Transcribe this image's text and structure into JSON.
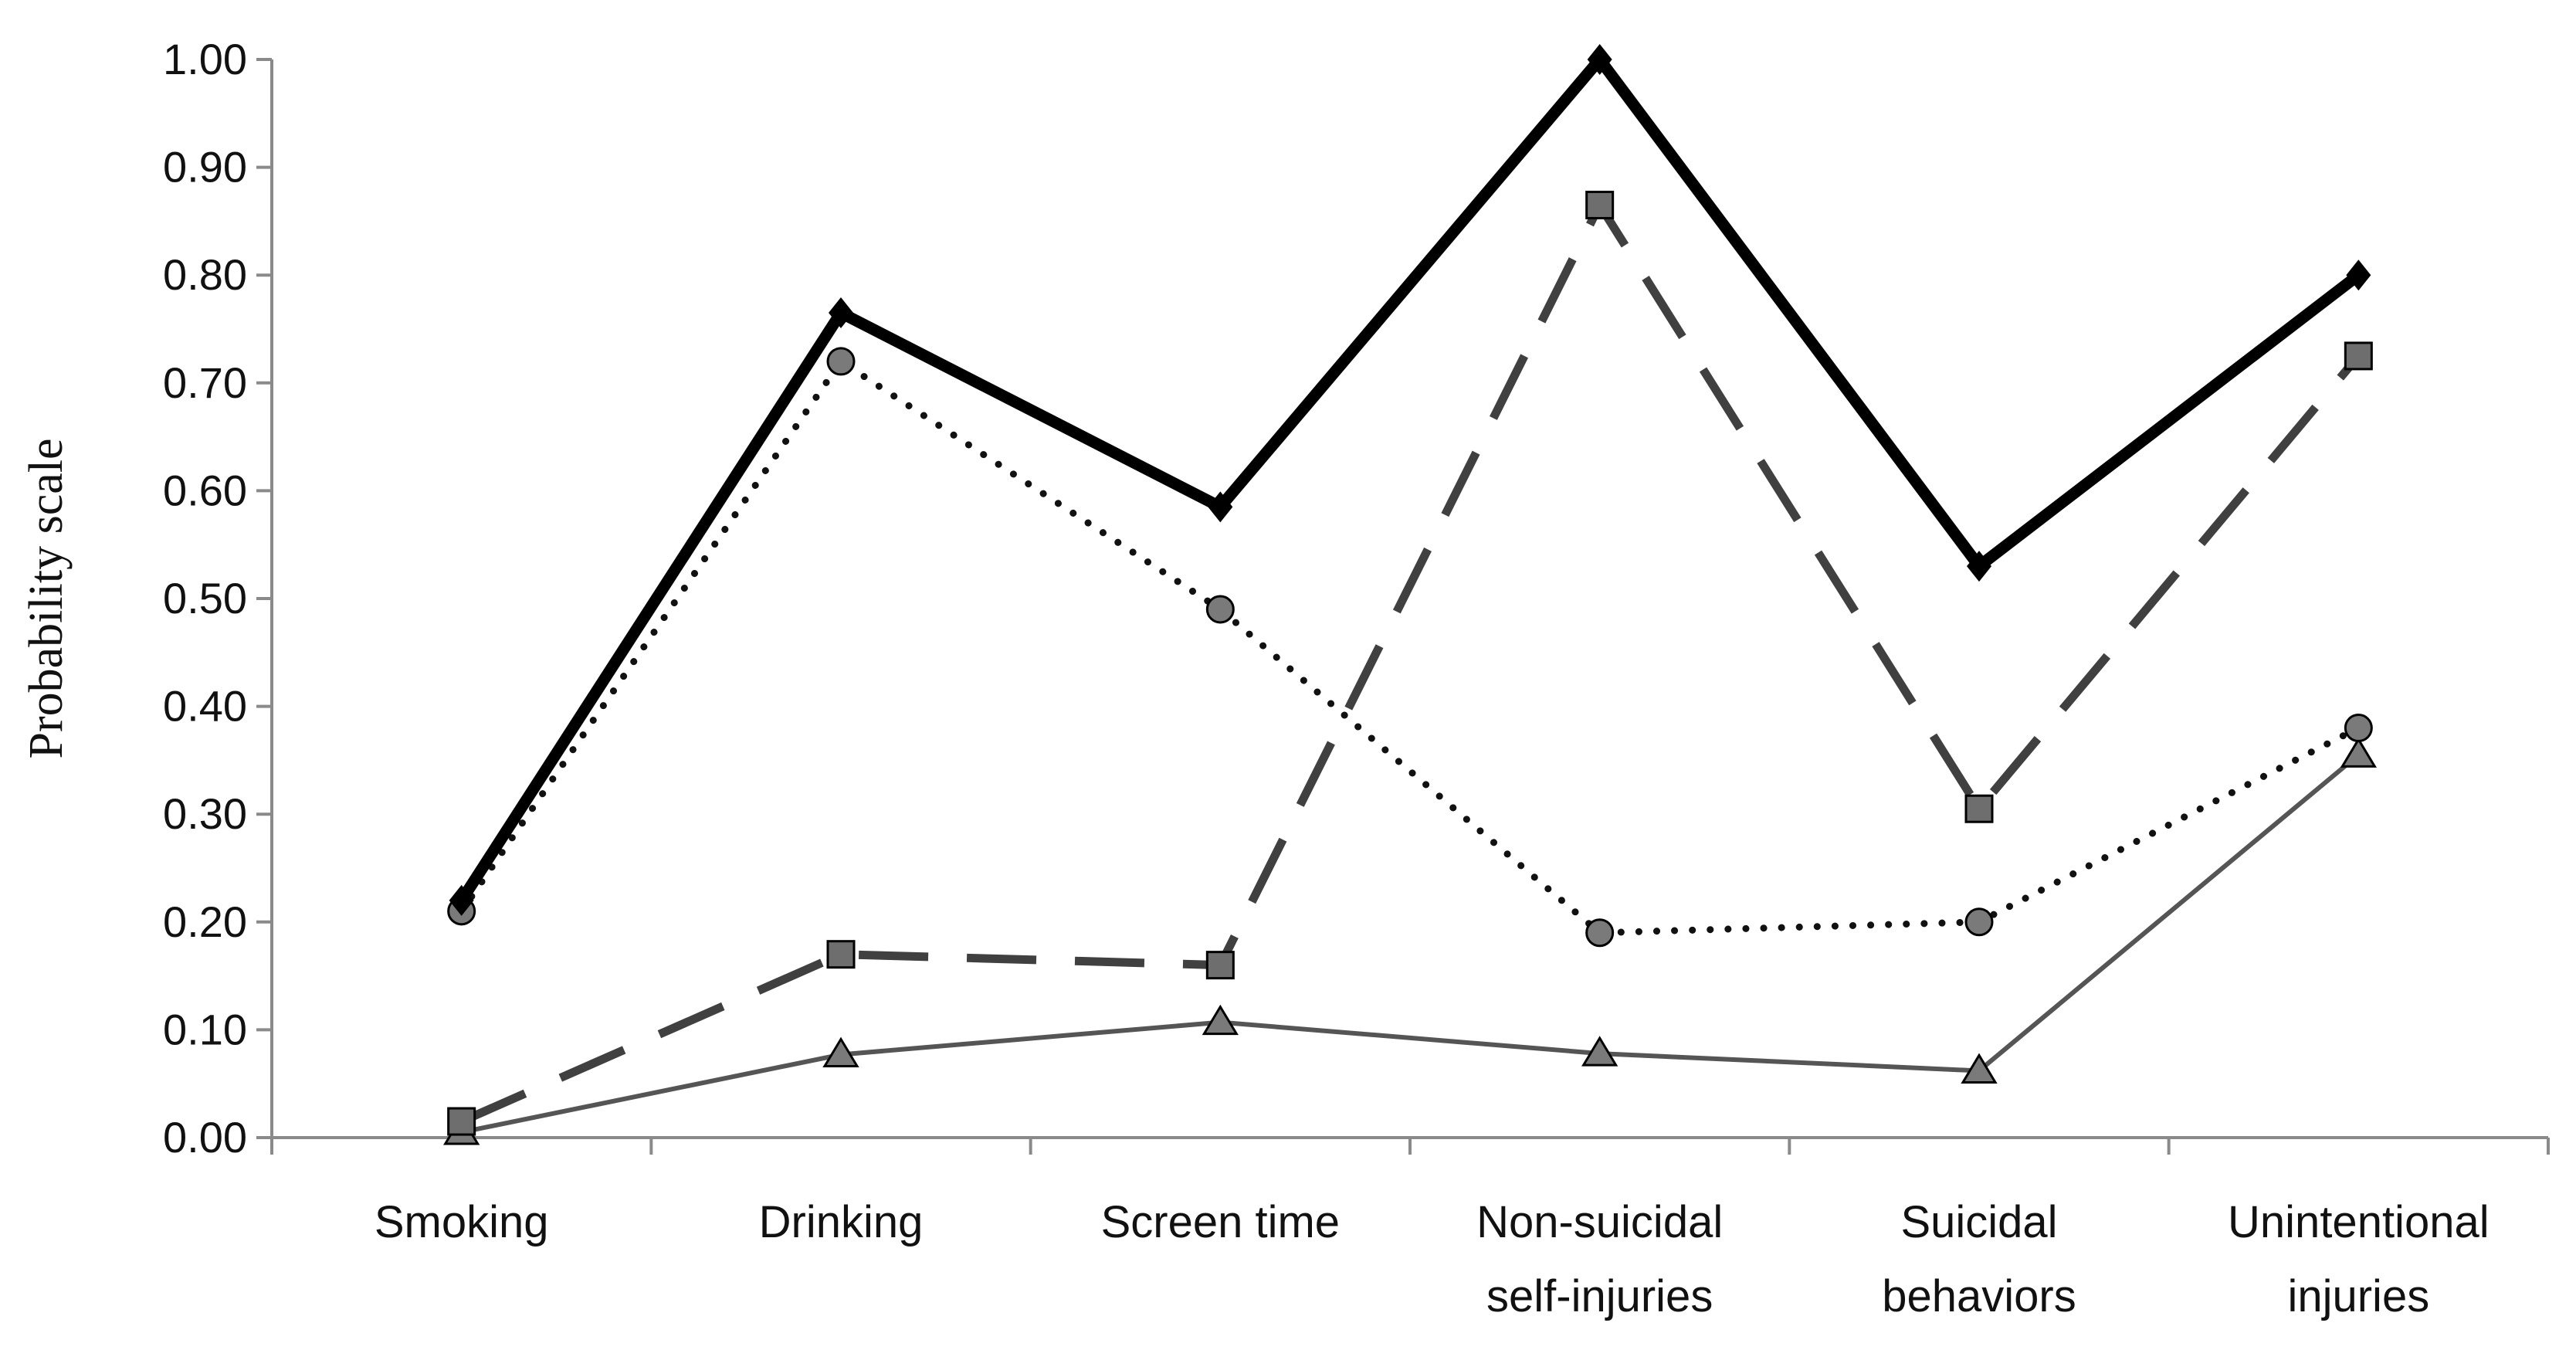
{
  "chart_data": {
    "type": "line",
    "ylabel": "Probability scale",
    "xlabel": "",
    "ylim": [
      0,
      1
    ],
    "yticks": [
      0.0,
      0.1,
      0.2,
      0.3,
      0.4,
      0.5,
      0.6,
      0.7,
      0.8,
      0.9,
      1.0
    ],
    "ytick_labels": [
      "0.00",
      "0.10",
      "0.20",
      "0.30",
      "0.40",
      "0.50",
      "0.60",
      "0.70",
      "0.80",
      "0.90",
      "1.00"
    ],
    "grid": false,
    "legend": "none",
    "categories": [
      [
        "Smoking"
      ],
      [
        "Drinking"
      ],
      [
        "Screen time"
      ],
      [
        "Non-suicidal",
        "self-injuries"
      ],
      [
        "Suicidal",
        "behaviors"
      ],
      [
        "Unintentional",
        "injuries"
      ]
    ],
    "series": [
      {
        "values": [
          0.22,
          0.765,
          0.585,
          1.0,
          0.53,
          0.8
        ],
        "color": "#000000",
        "marker": "diamond",
        "line_style": "solid-thick"
      },
      {
        "values": [
          0.21,
          0.72,
          0.49,
          0.19,
          0.2,
          0.38
        ],
        "color": "#111111",
        "marker_color": "#7a7a7a",
        "marker": "circle",
        "line_style": "dotted"
      },
      {
        "values": [
          0.015,
          0.17,
          0.16,
          0.865,
          0.305,
          0.725
        ],
        "color": "#404040",
        "marker_color": "#6e6e6e",
        "marker": "square",
        "line_style": "dashed"
      },
      {
        "values": [
          0.005,
          0.077,
          0.107,
          0.078,
          0.062,
          0.355
        ],
        "color": "#555555",
        "marker_color": "#7a7a7a",
        "marker": "triangle",
        "line_style": "solid-thin"
      }
    ]
  }
}
